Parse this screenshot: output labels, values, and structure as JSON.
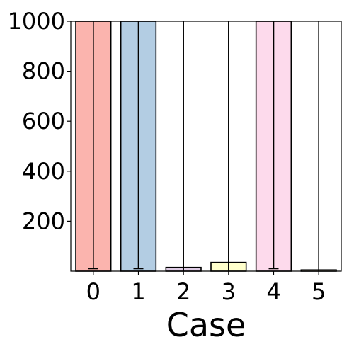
{
  "chart_data": {
    "type": "bar",
    "title": "",
    "xlabel": "Case",
    "ylabel": "",
    "categories": [
      "0",
      "1",
      "2",
      "3",
      "4",
      "5"
    ],
    "values": [
      1000,
      1000,
      15,
      35,
      1000,
      5
    ],
    "error_high": [
      1000,
      1000,
      1000,
      1000,
      1000,
      1000
    ],
    "error_low": [
      10,
      10,
      0,
      0,
      10,
      0
    ],
    "colors": [
      "#fbb4ae",
      "#b3cde3",
      "#decbe4",
      "#ffffcc",
      "#fddaec",
      "#e5d8bd"
    ],
    "ylim": [
      0,
      1000
    ],
    "yticks": [
      {
        "value": 200,
        "label": "200"
      },
      {
        "value": 400,
        "label": "400"
      },
      {
        "value": 600,
        "label": "600"
      },
      {
        "value": 800,
        "label": "800"
      },
      {
        "value": 1000,
        "label": "1000"
      }
    ],
    "grid": false,
    "legend": "none"
  }
}
